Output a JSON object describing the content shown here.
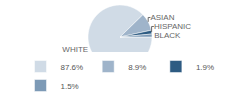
{
  "chart_data": {
    "type": "pie",
    "categories": [
      "WHITE",
      "ASIAN",
      "HISPANIC",
      "BLACK"
    ],
    "values": [
      87.6,
      8.9,
      1.9,
      1.5
    ],
    "value_labels": [
      "87.6%",
      "8.9%",
      "1.9%",
      "1.5%"
    ],
    "colors": [
      "#d0dbe6",
      "#9fb4ca",
      "#2d5b82",
      "#7d9ab6"
    ],
    "legend": "bottom"
  }
}
